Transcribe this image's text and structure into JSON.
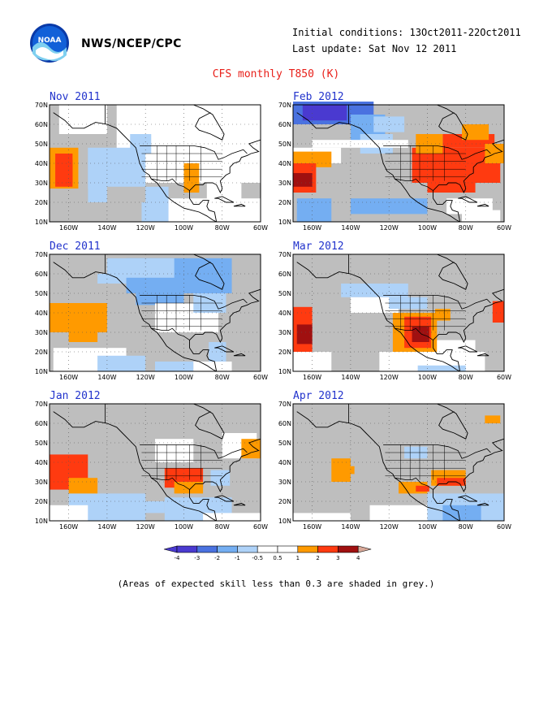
{
  "header": {
    "agency": "NWS/NCEP/CPC",
    "initial_conditions": "Initial conditions: 13Oct2011-22Oct2011",
    "last_update": "Last update: Sat Nov 12 2011",
    "title": "CFS monthly T850 (K)"
  },
  "logo": {
    "text": "NOAA",
    "name": "noaa-logo"
  },
  "axes": {
    "lat_labels": [
      "70N",
      "60N",
      "50N",
      "40N",
      "30N",
      "20N",
      "10N"
    ],
    "lon_labels": [
      "160W",
      "140W",
      "120W",
      "100W",
      "80W",
      "60W"
    ]
  },
  "panels": [
    {
      "title": "Nov 2011"
    },
    {
      "title": "Feb 2012"
    },
    {
      "title": "Dec 2011"
    },
    {
      "title": "Mar 2012"
    },
    {
      "title": "Jan 2012"
    },
    {
      "title": "Apr 2012"
    }
  ],
  "legend": {
    "labels": [
      "-4",
      "-3",
      "-2",
      "-1",
      "-0.5",
      "0.5",
      "1",
      "2",
      "3",
      "4"
    ],
    "colors": [
      "#4a3ad0",
      "#4a72e0",
      "#74aef2",
      "#aed2f8",
      "#ffffff",
      "#ffffff",
      "#ff9a00",
      "#ff3a10",
      "#a01010",
      "#d8a898"
    ]
  },
  "note": "(Areas of expected skill less than 0.3 are shaded in grey.)",
  "colors": {
    "grey_mask": "#bebebe",
    "title_red": "#e8201a",
    "panel_title_blue": "#2233cc"
  }
}
